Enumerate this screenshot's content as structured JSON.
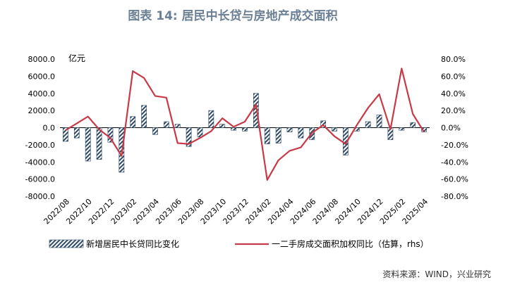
{
  "title": "图表 14: 居民中长贷与房地产成交面积",
  "source": "资料来源：WIND，兴业研究",
  "chart_data": {
    "type": "bar",
    "unit_left": "亿元",
    "x_tick_labels": [
      "2022/08",
      "2022/10",
      "2022/12",
      "2023/02",
      "2023/04",
      "2023/06",
      "2023/08",
      "2023/10",
      "2023/12",
      "2024/02",
      "2024/04",
      "2024/06",
      "2024/08",
      "2024/10",
      "2024/12",
      "2025/02",
      "2025/04"
    ],
    "categories": [
      "2022/08",
      "2022/09",
      "2022/10",
      "2022/11",
      "2022/12",
      "2023/01",
      "2023/02",
      "2023/03",
      "2023/04",
      "2023/05",
      "2023/06",
      "2023/07",
      "2023/08",
      "2023/09",
      "2023/10",
      "2023/11",
      "2023/12",
      "2024/01",
      "2024/02",
      "2024/03",
      "2024/04",
      "2024/05",
      "2024/06",
      "2024/07",
      "2024/08",
      "2024/09",
      "2024/10",
      "2024/11",
      "2024/12",
      "2025/01",
      "2025/02",
      "2025/03",
      "2025/04"
    ],
    "y_left": {
      "ylim": [
        -8000,
        8000
      ],
      "ticks": [
        "8000.0",
        "6000.0",
        "4000.0",
        "2000.0",
        "0.0",
        "-2000.0",
        "-4000.0",
        "-6000.0",
        "-8000.0"
      ]
    },
    "y_right": {
      "ylim": [
        -80,
        80
      ],
      "ticks": [
        "80.0%",
        "60.0%",
        "40.0%",
        "20.0%",
        "0.0%",
        "-20.0%",
        "-40.0%",
        "-60.0%",
        "-80.0%"
      ]
    },
    "series": [
      {
        "name": "新增居民中长贷同比变化",
        "kind": "bar",
        "axis": "left",
        "color": "#2f4a66",
        "values": [
          -1600,
          -1200,
          -3900,
          -3700,
          -1700,
          -5200,
          1300,
          2600,
          -800,
          700,
          400,
          -2200,
          -1100,
          2000,
          400,
          -300,
          -400,
          4000,
          -1900,
          -1800,
          -500,
          -1200,
          -1400,
          800,
          -400,
          -3200,
          -400,
          700,
          1500,
          -1400,
          -300,
          600,
          -500
        ]
      },
      {
        "name": "一二手房成交面积加权同比（估算，rhs）",
        "kind": "line",
        "axis": "right",
        "color": "#c73a47",
        "values": [
          -3,
          5,
          13,
          -2,
          -12,
          -33,
          66,
          58,
          37,
          35,
          -18,
          -19,
          -12,
          -4,
          11,
          1,
          7,
          27,
          -61,
          -38,
          -27,
          -23,
          -6,
          3,
          -10,
          -19,
          3,
          23,
          39,
          -2,
          69,
          16,
          -5
        ]
      }
    ],
    "legend": "bottom"
  }
}
